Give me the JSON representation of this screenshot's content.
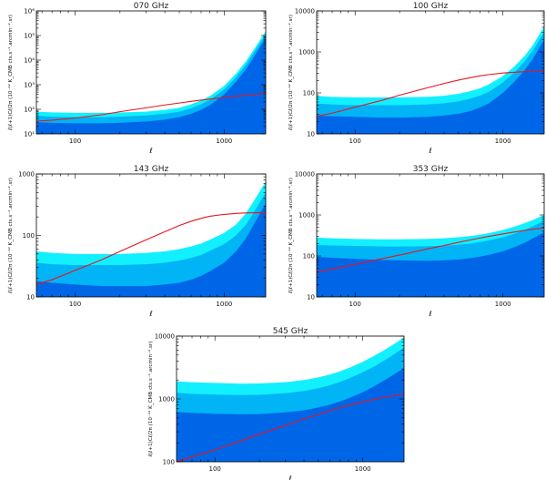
{
  "figure": {
    "ylabel_prefix": "ℓ(ℓ+1)Cℓ/2π",
    "ylabel_unit": "(10⁻¹² K_CMB cts.s⁻¹.arcmin⁻².sr)",
    "xlabel": "ℓ"
  },
  "colors": {
    "band_outer": "#12f0ff",
    "band_middle": "#00b4f5",
    "band_inner": "#0066e8",
    "signal_line": "#e8141e",
    "axis": "#000000"
  },
  "chart_data": [
    {
      "type": "area",
      "title": "070 GHz",
      "xscale": "log",
      "yscale": "log",
      "xlim": [
        55,
        1900
      ],
      "ylim": [
        10,
        1000000
      ],
      "xticks": [
        100,
        1000
      ],
      "xtick_labels": [
        "100",
        "1000"
      ],
      "yticks": [
        10,
        100,
        1000,
        10000,
        100000,
        1000000
      ],
      "ytick_labels": [
        "10¹",
        "10²",
        "10³",
        "10⁴",
        "10⁵",
        "10⁶"
      ],
      "x": [
        55,
        70,
        100,
        150,
        200,
        300,
        400,
        500,
        600,
        700,
        800,
        1000,
        1200,
        1400,
        1600,
        1900
      ],
      "series": [
        {
          "name": "noise_outer",
          "values": [
            80,
            75,
            72,
            72,
            74,
            80,
            95,
            115,
            160,
            230,
            340,
            900,
            2800,
            9000,
            30000,
            150000
          ]
        },
        {
          "name": "noise_middle",
          "values": [
            55,
            50,
            48,
            48,
            50,
            56,
            66,
            80,
            110,
            160,
            240,
            640,
            2000,
            6500,
            22000,
            110000
          ]
        },
        {
          "name": "noise_inner",
          "values": [
            30,
            28,
            27,
            27,
            28,
            32,
            38,
            48,
            65,
            95,
            145,
            400,
            1300,
            4200,
            15000,
            80000
          ]
        },
        {
          "name": "signal",
          "values": [
            33,
            36,
            44,
            60,
            80,
            115,
            150,
            180,
            210,
            235,
            260,
            300,
            340,
            375,
            405,
            450
          ]
        }
      ]
    },
    {
      "type": "area",
      "title": "100 GHz",
      "xscale": "log",
      "yscale": "log",
      "xlim": [
        55,
        1900
      ],
      "ylim": [
        10,
        10000
      ],
      "xticks": [
        100,
        1000
      ],
      "xtick_labels": [
        "100",
        "1000"
      ],
      "yticks": [
        10,
        100,
        1000,
        10000
      ],
      "ytick_labels": [
        "10",
        "100",
        "1000",
        "10000"
      ],
      "x": [
        55,
        70,
        100,
        150,
        200,
        300,
        400,
        500,
        600,
        700,
        800,
        1000,
        1200,
        1400,
        1600,
        1900
      ],
      "series": [
        {
          "name": "noise_outer",
          "values": [
            85,
            80,
            78,
            78,
            78,
            80,
            85,
            95,
            110,
            130,
            160,
            260,
            450,
            800,
            1500,
            4200
          ]
        },
        {
          "name": "noise_middle",
          "values": [
            55,
            52,
            50,
            50,
            50,
            52,
            56,
            62,
            72,
            86,
            105,
            180,
            320,
            580,
            1100,
            3000
          ]
        },
        {
          "name": "noise_inner",
          "values": [
            28,
            27,
            26,
            25,
            25,
            26,
            28,
            31,
            36,
            44,
            55,
            100,
            190,
            360,
            700,
            2000
          ]
        },
        {
          "name": "signal",
          "values": [
            27,
            32,
            45,
            65,
            88,
            130,
            170,
            205,
            235,
            260,
            280,
            305,
            320,
            330,
            335,
            340
          ]
        }
      ]
    },
    {
      "type": "area",
      "title": "143 GHz",
      "xscale": "log",
      "yscale": "log",
      "xlim": [
        55,
        1900
      ],
      "ylim": [
        10,
        1000
      ],
      "xticks": [
        100,
        1000
      ],
      "xtick_labels": [
        "100",
        "1000"
      ],
      "yticks": [
        10,
        100,
        1000
      ],
      "ytick_labels": [
        "10",
        "100",
        "1000"
      ],
      "x": [
        55,
        70,
        100,
        150,
        200,
        300,
        400,
        500,
        600,
        700,
        800,
        1000,
        1200,
        1400,
        1600,
        1900
      ],
      "series": [
        {
          "name": "noise_outer",
          "values": [
            55,
            52,
            50,
            50,
            50,
            52,
            55,
            60,
            66,
            74,
            85,
            110,
            150,
            230,
            380,
            750
          ]
        },
        {
          "name": "noise_middle",
          "values": [
            36,
            34,
            33,
            33,
            33,
            34,
            36,
            39,
            43,
            48,
            56,
            72,
            100,
            150,
            250,
            500
          ]
        },
        {
          "name": "noise_inner",
          "values": [
            18,
            17,
            16,
            15,
            15,
            15,
            16,
            17,
            19,
            22,
            26,
            36,
            55,
            90,
            160,
            330
          ]
        },
        {
          "name": "signal",
          "values": [
            16,
            19,
            27,
            40,
            55,
            85,
            115,
            145,
            170,
            190,
            205,
            220,
            228,
            232,
            234,
            235
          ]
        }
      ]
    },
    {
      "type": "area",
      "title": "353 GHz",
      "xscale": "log",
      "yscale": "log",
      "xlim": [
        55,
        1900
      ],
      "ylim": [
        10,
        10000
      ],
      "xticks": [
        100,
        1000
      ],
      "xtick_labels": [
        "100",
        "1000"
      ],
      "yticks": [
        10,
        100,
        1000,
        10000
      ],
      "ytick_labels": [
        "10",
        "100",
        "1000",
        "10000"
      ],
      "x": [
        55,
        70,
        100,
        150,
        200,
        300,
        400,
        500,
        600,
        700,
        800,
        1000,
        1200,
        1400,
        1600,
        1900
      ],
      "series": [
        {
          "name": "noise_outer",
          "values": [
            280,
            270,
            260,
            255,
            255,
            260,
            270,
            285,
            305,
            330,
            360,
            430,
            520,
            630,
            760,
            1000
          ]
        },
        {
          "name": "noise_middle",
          "values": [
            185,
            180,
            175,
            170,
            170,
            172,
            178,
            188,
            200,
            218,
            238,
            285,
            350,
            430,
            530,
            720
          ]
        },
        {
          "name": "noise_inner",
          "values": [
            95,
            90,
            85,
            80,
            78,
            76,
            78,
            82,
            88,
            96,
            106,
            130,
            165,
            210,
            270,
            380
          ]
        },
        {
          "name": "signal",
          "values": [
            40,
            48,
            62,
            85,
            105,
            145,
            180,
            215,
            245,
            275,
            300,
            345,
            385,
            420,
            450,
            480
          ]
        }
      ]
    },
    {
      "type": "area",
      "title": "545 GHz",
      "xscale": "log",
      "yscale": "log",
      "xlim": [
        55,
        1900
      ],
      "ylim": [
        100,
        10000
      ],
      "xticks": [
        100,
        1000
      ],
      "xtick_labels": [
        "100",
        "1000"
      ],
      "yticks": [
        100,
        1000,
        10000
      ],
      "ytick_labels": [
        "100",
        "1000",
        "10000"
      ],
      "x": [
        55,
        70,
        100,
        150,
        200,
        300,
        400,
        500,
        600,
        700,
        800,
        1000,
        1200,
        1400,
        1600,
        1900
      ],
      "series": [
        {
          "name": "noise_outer",
          "values": [
            1900,
            1850,
            1800,
            1750,
            1760,
            1850,
            2000,
            2200,
            2450,
            2750,
            3100,
            3900,
            4900,
            6000,
            7300,
            9500
          ]
        },
        {
          "name": "noise_middle",
          "values": [
            1250,
            1200,
            1170,
            1150,
            1160,
            1230,
            1340,
            1480,
            1650,
            1860,
            2100,
            2650,
            3300,
            4100,
            5000,
            6600
          ]
        },
        {
          "name": "noise_inner",
          "values": [
            620,
            600,
            580,
            570,
            575,
            610,
            660,
            730,
            810,
            910,
            1020,
            1280,
            1600,
            1980,
            2400,
            3100
          ]
        },
        {
          "name": "signal",
          "values": [
            100,
            120,
            155,
            215,
            275,
            380,
            480,
            570,
            650,
            725,
            790,
            900,
            990,
            1060,
            1120,
            1200
          ]
        }
      ]
    }
  ]
}
